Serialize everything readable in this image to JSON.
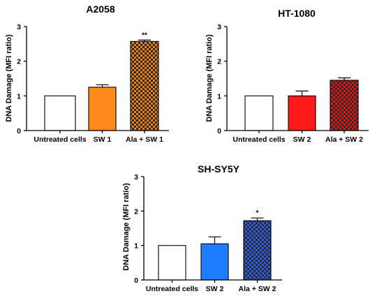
{
  "chart_data": [
    {
      "type": "bar",
      "title": "A2058",
      "ylabel": "DNA Damage (MFI ratio)",
      "xlabel": "",
      "ylim": [
        0,
        3
      ],
      "yticks": [
        "0",
        "1",
        "2",
        "3"
      ],
      "categories": [
        "Untreated cells",
        "SW 1",
        "Ala + SW 1"
      ],
      "values": [
        1.0,
        1.25,
        2.57
      ],
      "errors": [
        0,
        0.07,
        0.04
      ],
      "annotations": [
        "",
        "",
        "**"
      ],
      "colors": [
        "#ffffff",
        "#ff8a1c",
        "#f07d10"
      ],
      "patterns": [
        "solid",
        "solid",
        "checker"
      ]
    },
    {
      "type": "bar",
      "title": "HT-1080",
      "ylabel": "DNA Damage (MFI ratio)",
      "xlabel": "",
      "ylim": [
        0,
        3
      ],
      "yticks": [
        "0",
        "1",
        "2",
        "3"
      ],
      "categories": [
        "Untreated cells",
        "SW 2",
        "Ala + SW 2"
      ],
      "values": [
        1.0,
        1.0,
        1.45
      ],
      "errors": [
        0,
        0.14,
        0.07
      ],
      "annotations": [
        "",
        "",
        ""
      ],
      "colors": [
        "#ffffff",
        "#ff1a1a",
        "#e31414"
      ],
      "patterns": [
        "solid",
        "solid",
        "checker"
      ]
    },
    {
      "type": "bar",
      "title": "SH-SY5Y",
      "ylabel": "DNA Damage (MFI ratio)",
      "xlabel": "",
      "ylim": [
        0,
        3
      ],
      "yticks": [
        "0",
        "1",
        "2",
        "3"
      ],
      "categories": [
        "Untreated cells",
        "SW 2",
        "Ala + SW 2"
      ],
      "values": [
        1.0,
        1.05,
        1.72
      ],
      "errors": [
        0,
        0.2,
        0.08
      ],
      "annotations": [
        "",
        "",
        "*"
      ],
      "colors": [
        "#ffffff",
        "#1e7dff",
        "#2a5ce6"
      ],
      "patterns": [
        "solid",
        "solid",
        "checker"
      ]
    }
  ]
}
